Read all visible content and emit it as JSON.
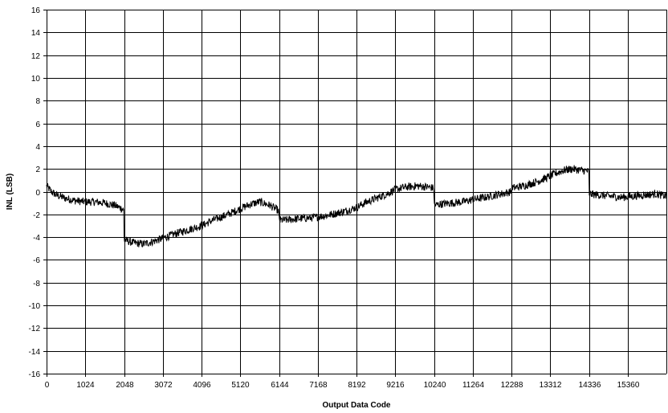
{
  "chart_data": {
    "type": "line",
    "title": "",
    "xlabel": "Output Data Code",
    "ylabel": "INL (LSB)",
    "xlim": [
      0,
      16383
    ],
    "ylim": [
      -16,
      16
    ],
    "x_ticks": [
      0,
      1024,
      2048,
      3072,
      4096,
      5120,
      6144,
      7168,
      8192,
      9216,
      10240,
      11264,
      12288,
      13312,
      14336,
      15360
    ],
    "y_ticks": [
      16,
      14,
      12,
      10,
      8,
      6,
      4,
      2,
      0,
      -2,
      -4,
      -6,
      -8,
      -10,
      -12,
      -14,
      -16
    ],
    "grid": true,
    "legend": "none",
    "series": [
      {
        "color": "#000000",
        "x": [
          0,
          128,
          256,
          512,
          768,
          1024,
          1280,
          1536,
          1792,
          2000,
          2047,
          2048,
          2100,
          2300,
          2560,
          2800,
          3072,
          3400,
          3800,
          4096,
          4400,
          4800,
          5120,
          5400,
          5632,
          5900,
          6100,
          6143,
          6144,
          6300,
          6600,
          7000,
          7400,
          7800,
          8192,
          8400,
          8700,
          9000,
          9216,
          9500,
          9800,
          10100,
          10239,
          10240,
          10400,
          10700,
          11000,
          11264,
          11600,
          12000,
          12287,
          12288,
          12600,
          12900,
          13200,
          13450,
          13700,
          13900,
          14100,
          14300,
          14335,
          14336,
          14600,
          14900,
          15200,
          15500,
          15800,
          16100,
          16383
        ],
        "y": [
          0.5,
          0.0,
          -0.3,
          -0.6,
          -0.8,
          -0.9,
          -0.9,
          -1.0,
          -1.2,
          -1.5,
          -1.7,
          -4.2,
          -4.3,
          -4.5,
          -4.6,
          -4.4,
          -4.1,
          -3.7,
          -3.3,
          -3.0,
          -2.5,
          -2.0,
          -1.5,
          -1.1,
          -0.9,
          -1.2,
          -1.6,
          -1.8,
          -2.5,
          -2.5,
          -2.4,
          -2.3,
          -2.1,
          -1.8,
          -1.4,
          -1.0,
          -0.6,
          -0.2,
          0.2,
          0.4,
          0.5,
          0.4,
          0.3,
          -1.2,
          -1.1,
          -1.0,
          -0.9,
          -0.7,
          -0.5,
          -0.2,
          0.0,
          0.3,
          0.5,
          0.8,
          1.2,
          1.6,
          1.9,
          2.0,
          1.9,
          1.8,
          1.7,
          -0.2,
          -0.3,
          -0.4,
          -0.5,
          -0.4,
          -0.3,
          -0.2,
          -0.4
        ],
        "noise_lsb": 0.35
      }
    ]
  }
}
